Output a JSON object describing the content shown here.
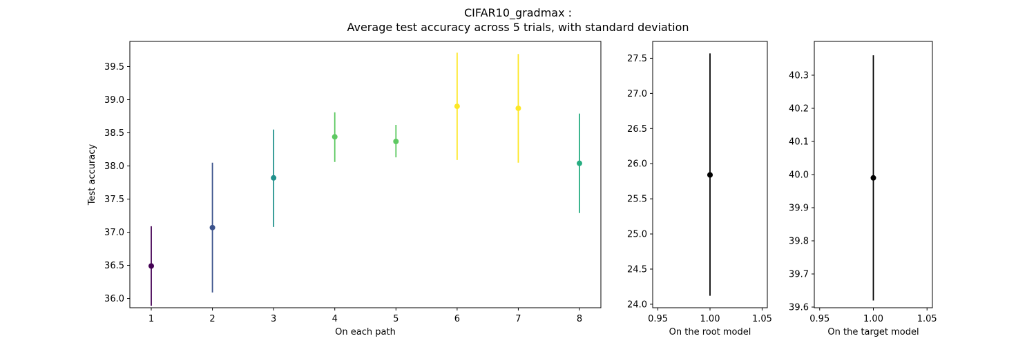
{
  "title_line1": "CIFAR10_gradmax :",
  "title_line2": "Average test accuracy across 5 trials, with standard deviation",
  "chart_data": [
    {
      "type": "scatter",
      "errorbars": true,
      "xlabel": "On each path",
      "ylabel": "Test accuracy",
      "xlim": [
        0.65,
        8.35
      ],
      "ylim": [
        35.86,
        39.88
      ],
      "xticks": [
        1,
        2,
        3,
        4,
        5,
        6,
        7,
        8
      ],
      "xtick_labels": [
        "1",
        "2",
        "3",
        "4",
        "5",
        "6",
        "7",
        "8"
      ],
      "yticks": [
        36.0,
        36.5,
        37.0,
        37.5,
        38.0,
        38.5,
        39.0,
        39.5
      ],
      "ytick_labels": [
        "36.0",
        "36.5",
        "37.0",
        "37.5",
        "38.0",
        "38.5",
        "39.0",
        "39.5"
      ],
      "points": [
        {
          "x": 1,
          "y": 36.49,
          "lo": 35.89,
          "hi": 37.09,
          "color": "#440154"
        },
        {
          "x": 2,
          "y": 37.07,
          "lo": 36.09,
          "hi": 38.05,
          "color": "#3b528b"
        },
        {
          "x": 3,
          "y": 37.82,
          "lo": 37.08,
          "hi": 38.55,
          "color": "#21918c"
        },
        {
          "x": 4,
          "y": 38.44,
          "lo": 38.06,
          "hi": 38.81,
          "color": "#5ec962"
        },
        {
          "x": 5,
          "y": 38.37,
          "lo": 38.13,
          "hi": 38.62,
          "color": "#5ec962"
        },
        {
          "x": 6,
          "y": 38.9,
          "lo": 38.09,
          "hi": 39.71,
          "color": "#fde725"
        },
        {
          "x": 7,
          "y": 38.87,
          "lo": 38.05,
          "hi": 39.69,
          "color": "#fde725"
        },
        {
          "x": 8,
          "y": 38.04,
          "lo": 37.29,
          "hi": 38.79,
          "color": "#27ad81"
        }
      ]
    },
    {
      "type": "scatter",
      "errorbars": true,
      "xlabel": "On the root model",
      "ylabel": "",
      "xlim": [
        0.945,
        1.055
      ],
      "ylim": [
        23.95,
        27.74
      ],
      "xticks": [
        0.95,
        1.0,
        1.05
      ],
      "xtick_labels": [
        "0.95",
        "1.00",
        "1.05"
      ],
      "yticks": [
        24.0,
        24.5,
        25.0,
        25.5,
        26.0,
        26.5,
        27.0,
        27.5
      ],
      "ytick_labels": [
        "24.0",
        "24.5",
        "25.0",
        "25.5",
        "26.0",
        "26.5",
        "27.0",
        "27.5"
      ],
      "points": [
        {
          "x": 1.0,
          "y": 25.84,
          "lo": 24.12,
          "hi": 27.57,
          "color": "#000000"
        }
      ]
    },
    {
      "type": "scatter",
      "errorbars": true,
      "xlabel": "On the target model",
      "ylabel": "",
      "xlim": [
        0.945,
        1.055
      ],
      "ylim": [
        39.598,
        40.402
      ],
      "xticks": [
        0.95,
        1.0,
        1.05
      ],
      "xtick_labels": [
        "0.95",
        "1.00",
        "1.05"
      ],
      "yticks": [
        39.6,
        39.7,
        39.8,
        39.9,
        40.0,
        40.1,
        40.2,
        40.3
      ],
      "ytick_labels": [
        "39.6",
        "39.7",
        "39.8",
        "39.9",
        "40.0",
        "40.1",
        "40.2",
        "40.3"
      ],
      "points": [
        {
          "x": 1.0,
          "y": 39.99,
          "lo": 39.62,
          "hi": 40.36,
          "color": "#000000"
        }
      ]
    }
  ]
}
